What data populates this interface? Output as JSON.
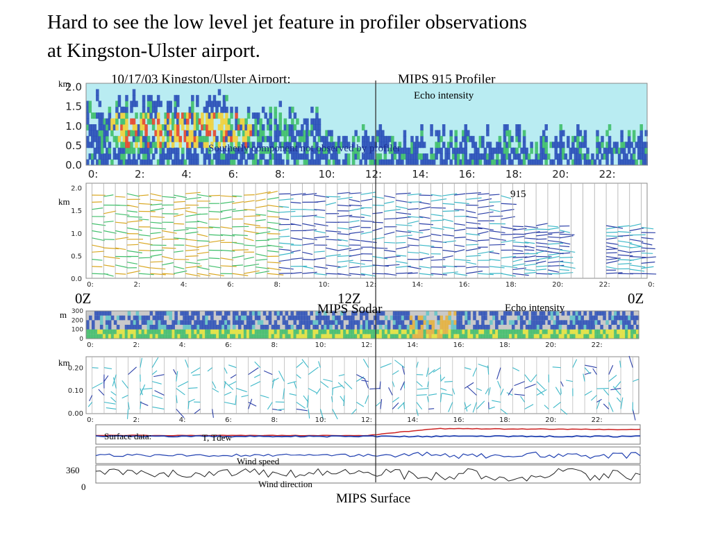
{
  "slide": {
    "title_line1": "Hard to see the low level jet feature in profiler observations",
    "title_line2": "at Kingston-Ulster airport.",
    "profiler_header_left": "10/17/03 Kingston/Ulster Airport:",
    "profiler_header_right": "MIPS 915 Profiler",
    "echo_label_top": "Echo intensity",
    "southerly_note": "Southerly component not observed by profiler",
    "label_915": "915",
    "label_0z_left": "0Z",
    "label_12z": "12Z",
    "label_0z_right": "0Z",
    "sodar_title": "MIPS Sodar",
    "echo_label_sodar": "Echo intensity",
    "unit_km_1": "km",
    "unit_km_2": "km",
    "unit_m": "m",
    "unit_km_3": "km",
    "surface_label": "Surface data:",
    "temp_label": "T, Tdew",
    "wind_speed_label": "Wind speed",
    "wind_dir_label": "Wind direction",
    "wd_tick_360": "360",
    "wd_tick_0": "0",
    "surface_title": "MIPS Surface"
  },
  "chart_data": [
    {
      "type": "heatmap",
      "name": "profiler echo intensity",
      "xlabel": "",
      "ylabel": "km",
      "x_ticks": [
        "0:",
        "2:",
        "4:",
        "6:",
        "8:",
        "10:",
        "12:",
        "14:",
        "16:",
        "18:",
        "20:",
        "22:"
      ],
      "y_ticks": [
        "0.0",
        "0.5",
        "1.0",
        "1.5",
        "2.0"
      ],
      "xlim": [
        0,
        24
      ],
      "ylim": [
        0,
        2.1
      ]
    },
    {
      "type": "scatter",
      "name": "profiler wind barbs",
      "ylabel": "km",
      "x_ticks": [
        "0:",
        "2:",
        "4:",
        "6:",
        "8:",
        "10:",
        "12:",
        "14:",
        "16:",
        "18:",
        "20:",
        "22:",
        "0:"
      ],
      "y_ticks": [
        "0.0",
        "0.5",
        "1.0",
        "1.5",
        "2.0"
      ],
      "xlim": [
        0,
        24
      ],
      "ylim": [
        0,
        2.1
      ]
    },
    {
      "type": "heatmap",
      "name": "sodar echo intensity",
      "ylabel": "m",
      "x_ticks": [
        "0:",
        "2:",
        "4:",
        "6:",
        "8:",
        "10:",
        "12:",
        "14:",
        "16:",
        "18:",
        "20:",
        "22:"
      ],
      "y_ticks": [
        "0",
        "100",
        "200",
        "300"
      ],
      "xlim": [
        0,
        24
      ],
      "ylim": [
        0,
        300
      ]
    },
    {
      "type": "scatter",
      "name": "sodar wind barbs",
      "ylabel": "km",
      "x_ticks": [
        "0:",
        "2:",
        "4:",
        "6:",
        "8:",
        "10:",
        "12:",
        "14:",
        "16:",
        "18:",
        "20:",
        "22:"
      ],
      "y_ticks": [
        "0.00",
        "0.10",
        "0.20"
      ],
      "xlim": [
        0,
        24
      ],
      "ylim": [
        0,
        0.25
      ]
    },
    {
      "type": "line",
      "name": "surface data",
      "series_labels": [
        "T, Tdew",
        "Wind speed",
        "Wind direction"
      ],
      "xlim": [
        0,
        24
      ]
    }
  ],
  "colors": {
    "sky": "#b9ecf2",
    "echo_low": "#2a4fb8",
    "echo_mid": "#3fbf6a",
    "echo_high": "#f2d23a",
    "echo_max": "#e8452a",
    "temp": "#cc2222",
    "dew": "#1f3fb0"
  }
}
